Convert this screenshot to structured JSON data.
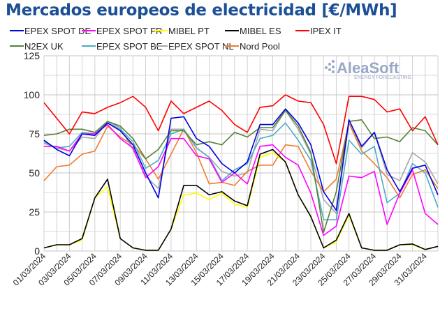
{
  "chart_data": {
    "type": "line",
    "title": "Mercados europeos de electricidad [€/MWh]",
    "xlabel": "",
    "ylabel": "",
    "ylim": [
      0,
      125
    ],
    "y_ticks": [
      "0",
      "25",
      "50",
      "75",
      "100",
      "125"
    ],
    "grid": true,
    "legend_placement": "top",
    "x": [
      "01/03/2024",
      "02/03/2024",
      "03/03/2024",
      "04/03/2024",
      "05/03/2024",
      "06/03/2024",
      "07/03/2024",
      "08/03/2024",
      "09/03/2024",
      "10/03/2024",
      "11/03/2024",
      "12/03/2024",
      "13/03/2024",
      "14/03/2024",
      "15/03/2024",
      "16/03/2024",
      "17/03/2024",
      "18/03/2024",
      "19/03/2024",
      "20/03/2024",
      "21/03/2024",
      "22/03/2024",
      "23/03/2024",
      "24/03/2024",
      "25/03/2024",
      "26/03/2024",
      "27/03/2024",
      "28/03/2024",
      "29/03/2024",
      "30/03/2024",
      "31/03/2024",
      "01/04/2024"
    ],
    "x_tick_labels": [
      "01/03/2024",
      "03/03/2024",
      "05/03/2024",
      "07/03/2024",
      "09/03/2024",
      "11/03/2024",
      "13/03/2024",
      "15/03/2024",
      "17/03/2024",
      "19/03/2024",
      "21/03/2024",
      "23/03/2024",
      "25/03/2024",
      "27/03/2024",
      "29/03/2024",
      "31/03/2024"
    ],
    "series": [
      {
        "name": "EPEX SPOT DE",
        "color": "#0000e0",
        "values": [
          71,
          65,
          61,
          75,
          74,
          82,
          77,
          68,
          50,
          34,
          85,
          86,
          72,
          67,
          56,
          50,
          57,
          81,
          81,
          91,
          82,
          68,
          38,
          26,
          84,
          67,
          76,
          52,
          38,
          53,
          55,
          36
        ]
      },
      {
        "name": "EPEX SPOT FR",
        "color": "#ff00ff",
        "values": [
          67,
          67,
          64,
          75,
          75,
          81,
          72,
          66,
          47,
          54,
          72,
          72,
          61,
          59,
          44,
          50,
          43,
          67,
          68,
          60,
          55,
          37,
          10,
          16,
          48,
          47,
          51,
          17,
          37,
          52,
          24,
          17
        ]
      },
      {
        "name": "MIBEL PT",
        "color": "#ffff00",
        "values": [
          2,
          4,
          4,
          7,
          34,
          41,
          8,
          2,
          0.5,
          0.5,
          14,
          36,
          37,
          33,
          37,
          30,
          28,
          60,
          63,
          57,
          36,
          22,
          2,
          6,
          23,
          2,
          0.5,
          0.5,
          4,
          4,
          1,
          3
        ]
      },
      {
        "name": "MIBEL ES",
        "color": "#000000",
        "values": [
          2,
          4,
          4,
          8,
          34,
          46,
          8,
          2,
          0.5,
          0.5,
          14,
          42,
          42,
          36,
          38,
          32,
          29,
          62,
          65,
          57,
          36,
          22,
          2,
          7,
          24,
          2,
          0.5,
          0.5,
          4,
          4.5,
          1,
          3
        ]
      },
      {
        "name": "IPEX IT",
        "color": "#ff0000",
        "values": [
          95,
          85,
          75,
          89,
          88,
          92,
          95,
          99,
          92,
          77,
          96,
          88,
          92,
          96,
          90,
          81,
          76,
          92,
          93,
          100,
          96,
          95,
          81,
          56,
          99,
          99,
          97,
          89,
          91,
          77,
          86,
          68
        ]
      },
      {
        "name": "N2EX UK",
        "color": "#548235",
        "values": [
          74,
          75,
          78,
          78,
          76,
          83,
          80,
          72,
          59,
          65,
          77,
          77,
          68,
          70,
          68,
          76,
          73,
          79,
          79,
          90,
          80,
          63,
          12,
          38,
          83,
          84,
          72,
          73,
          70,
          79,
          77,
          68
        ]
      },
      {
        "name": "EPEX SPOT BE",
        "color": "#4bacc6",
        "values": [
          70,
          66,
          67,
          76,
          75,
          82,
          78,
          70,
          53,
          58,
          75,
          78,
          66,
          60,
          45,
          52,
          56,
          72,
          74,
          82,
          71,
          58,
          20,
          20,
          71,
          62,
          67,
          31,
          37,
          56,
          50,
          28
        ]
      },
      {
        "name": "EPEX SPOT NL",
        "color": "#a6a6a6",
        "values": [
          69,
          66,
          64,
          73,
          72,
          83,
          79,
          65,
          48,
          40,
          78,
          78,
          66,
          60,
          51,
          48,
          50,
          78,
          77,
          90,
          78,
          62,
          33,
          24,
          82,
          66,
          76,
          49,
          45,
          63,
          57,
          43
        ]
      },
      {
        "name": "Nord Pool",
        "color": "#ed7d31",
        "values": [
          45,
          54,
          55,
          62,
          64,
          80,
          73,
          68,
          59,
          46,
          62,
          78,
          63,
          43,
          44,
          42,
          51,
          55,
          55,
          68,
          67,
          51,
          38,
          46,
          82,
          64,
          56,
          47,
          34,
          49,
          52,
          40
        ]
      }
    ]
  },
  "logo": {
    "name": "AleaSoft",
    "tagline": "ENERGY FORECASTING"
  }
}
